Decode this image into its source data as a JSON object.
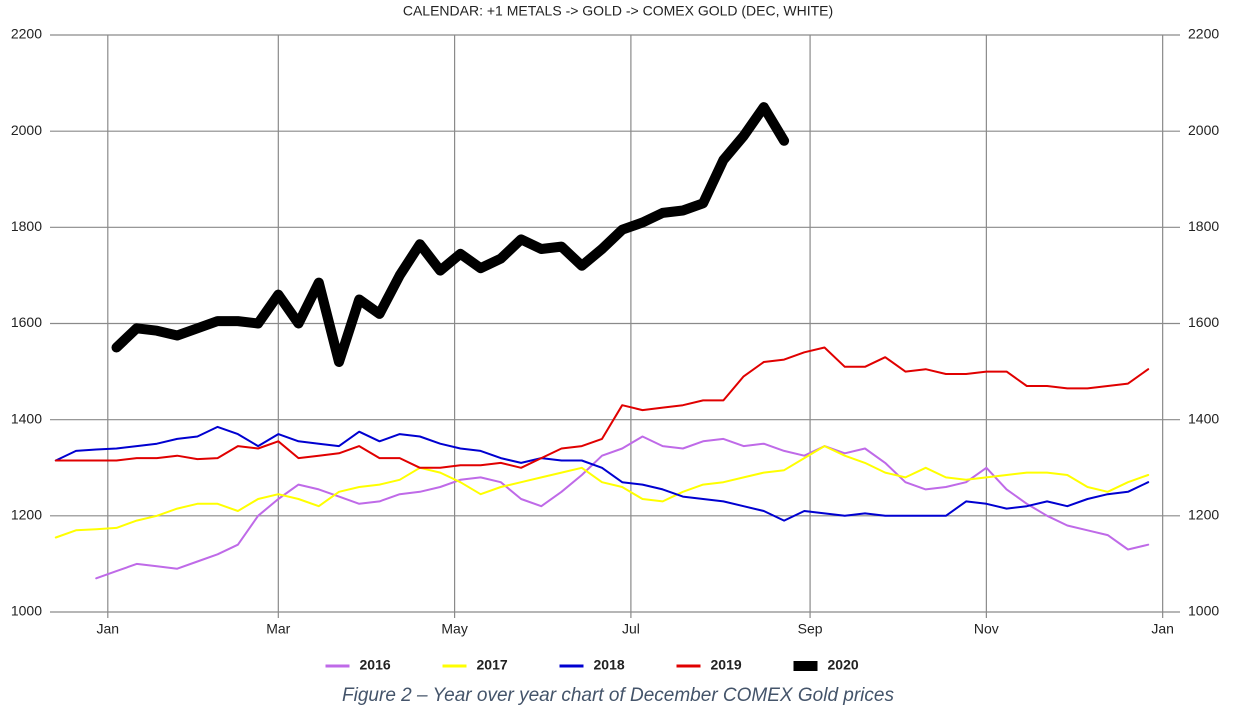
{
  "chart_data": {
    "type": "line",
    "title": "CALENDAR: +1 METALS -> GOLD -> COMEX GOLD (DEC, WHITE)",
    "caption": "Figure 2 – Year over year chart of December COMEX Gold prices",
    "x": [
      -18,
      -11,
      -4,
      3,
      10,
      17,
      24,
      31,
      38,
      45,
      52,
      59,
      66,
      73,
      80,
      87,
      94,
      101,
      108,
      115,
      122,
      129,
      136,
      143,
      150,
      157,
      164,
      171,
      178,
      185,
      192,
      199,
      206,
      213,
      220,
      227,
      234,
      241,
      248,
      255,
      262,
      269,
      276,
      283,
      290,
      297,
      304,
      311,
      318,
      325,
      332,
      339,
      346,
      353,
      360
    ],
    "xlim": [
      -20,
      371
    ],
    "xticks": [
      {
        "value": 0,
        "label": "Jan"
      },
      {
        "value": 59,
        "label": "Mar"
      },
      {
        "value": 120,
        "label": "May"
      },
      {
        "value": 181,
        "label": "Jul"
      },
      {
        "value": 243,
        "label": "Sep"
      },
      {
        "value": 304,
        "label": "Nov"
      },
      {
        "value": 365,
        "label": "Jan"
      }
    ],
    "ylim": [
      1000,
      2200
    ],
    "yticks": [
      1000,
      1200,
      1400,
      1600,
      1800,
      2000,
      2200
    ],
    "y2lim": [
      1000,
      2200
    ],
    "y2ticks": [
      1000,
      1200,
      1400,
      1600,
      1800,
      2000,
      2200
    ],
    "grid": true,
    "legend": "bottom",
    "series": [
      {
        "name": "2016",
        "color": "#bf6ae8",
        "linewidth": 2,
        "values": [
          null,
          null,
          1070,
          1085,
          1100,
          1095,
          1090,
          1105,
          1120,
          1140,
          1200,
          1235,
          1265,
          1255,
          1240,
          1225,
          1230,
          1245,
          1250,
          1260,
          1275,
          1280,
          1270,
          1235,
          1220,
          1250,
          1285,
          1325,
          1340,
          1365,
          1345,
          1340,
          1355,
          1360,
          1345,
          1350,
          1335,
          1325,
          1345,
          1330,
          1340,
          1310,
          1270,
          1255,
          1260,
          1270,
          1300,
          1255,
          1225,
          1200,
          1180,
          1170,
          1160,
          1130,
          1140
        ]
      },
      {
        "name": "2017",
        "color": "#ffff00",
        "linewidth": 2,
        "values": [
          1155,
          1170,
          1172,
          1175,
          1190,
          1200,
          1215,
          1225,
          1225,
          1210,
          1235,
          1245,
          1235,
          1220,
          1250,
          1260,
          1265,
          1275,
          1300,
          1290,
          1270,
          1245,
          1260,
          1270,
          1280,
          1290,
          1300,
          1270,
          1260,
          1235,
          1230,
          1250,
          1265,
          1270,
          1280,
          1290,
          1295,
          1320,
          1345,
          1325,
          1310,
          1290,
          1280,
          1300,
          1280,
          1275,
          1280,
          1285,
          1290,
          1290,
          1285,
          1260,
          1250,
          1270,
          1285
        ]
      },
      {
        "name": "2018",
        "color": "#0000d0",
        "linewidth": 2,
        "values": [
          1315,
          1335,
          1338,
          1340,
          1345,
          1350,
          1360,
          1365,
          1385,
          1370,
          1345,
          1370,
          1355,
          1350,
          1345,
          1375,
          1355,
          1370,
          1365,
          1350,
          1340,
          1335,
          1320,
          1310,
          1320,
          1315,
          1315,
          1300,
          1270,
          1265,
          1255,
          1240,
          1235,
          1230,
          1220,
          1210,
          1190,
          1210,
          1205,
          1200,
          1205,
          1200,
          1200,
          1200,
          1200,
          1230,
          1225,
          1215,
          1220,
          1230,
          1220,
          1235,
          1245,
          1250,
          1270
        ]
      },
      {
        "name": "2019",
        "color": "#e00000",
        "linewidth": 2,
        "values": [
          1315,
          1315,
          1315,
          1315,
          1320,
          1320,
          1325,
          1318,
          1320,
          1345,
          1340,
          1355,
          1320,
          1325,
          1330,
          1345,
          1320,
          1320,
          1300,
          1300,
          1305,
          1305,
          1310,
          1300,
          1320,
          1340,
          1345,
          1360,
          1430,
          1420,
          1425,
          1430,
          1440,
          1440,
          1490,
          1520,
          1525,
          1540,
          1550,
          1510,
          1510,
          1530,
          1500,
          1505,
          1495,
          1495,
          1500,
          1500,
          1470,
          1470,
          1465,
          1465,
          1470,
          1475,
          1505
        ]
      },
      {
        "name": "2020",
        "color": "#000000",
        "linewidth": 10,
        "values": [
          null,
          null,
          null,
          1550,
          1590,
          1585,
          1575,
          1590,
          1605,
          1605,
          1600,
          1660,
          1600,
          1685,
          1520,
          1650,
          1620,
          1700,
          1765,
          1710,
          1745,
          1715,
          1735,
          1775,
          1755,
          1760,
          1720,
          1755,
          1795,
          1810,
          1830,
          1835,
          1850,
          1940,
          1990,
          2050,
          1980,
          null,
          null,
          null,
          null,
          null,
          null,
          null,
          null,
          null,
          null,
          null,
          null,
          null,
          null,
          null,
          null,
          null,
          null
        ]
      }
    ]
  }
}
